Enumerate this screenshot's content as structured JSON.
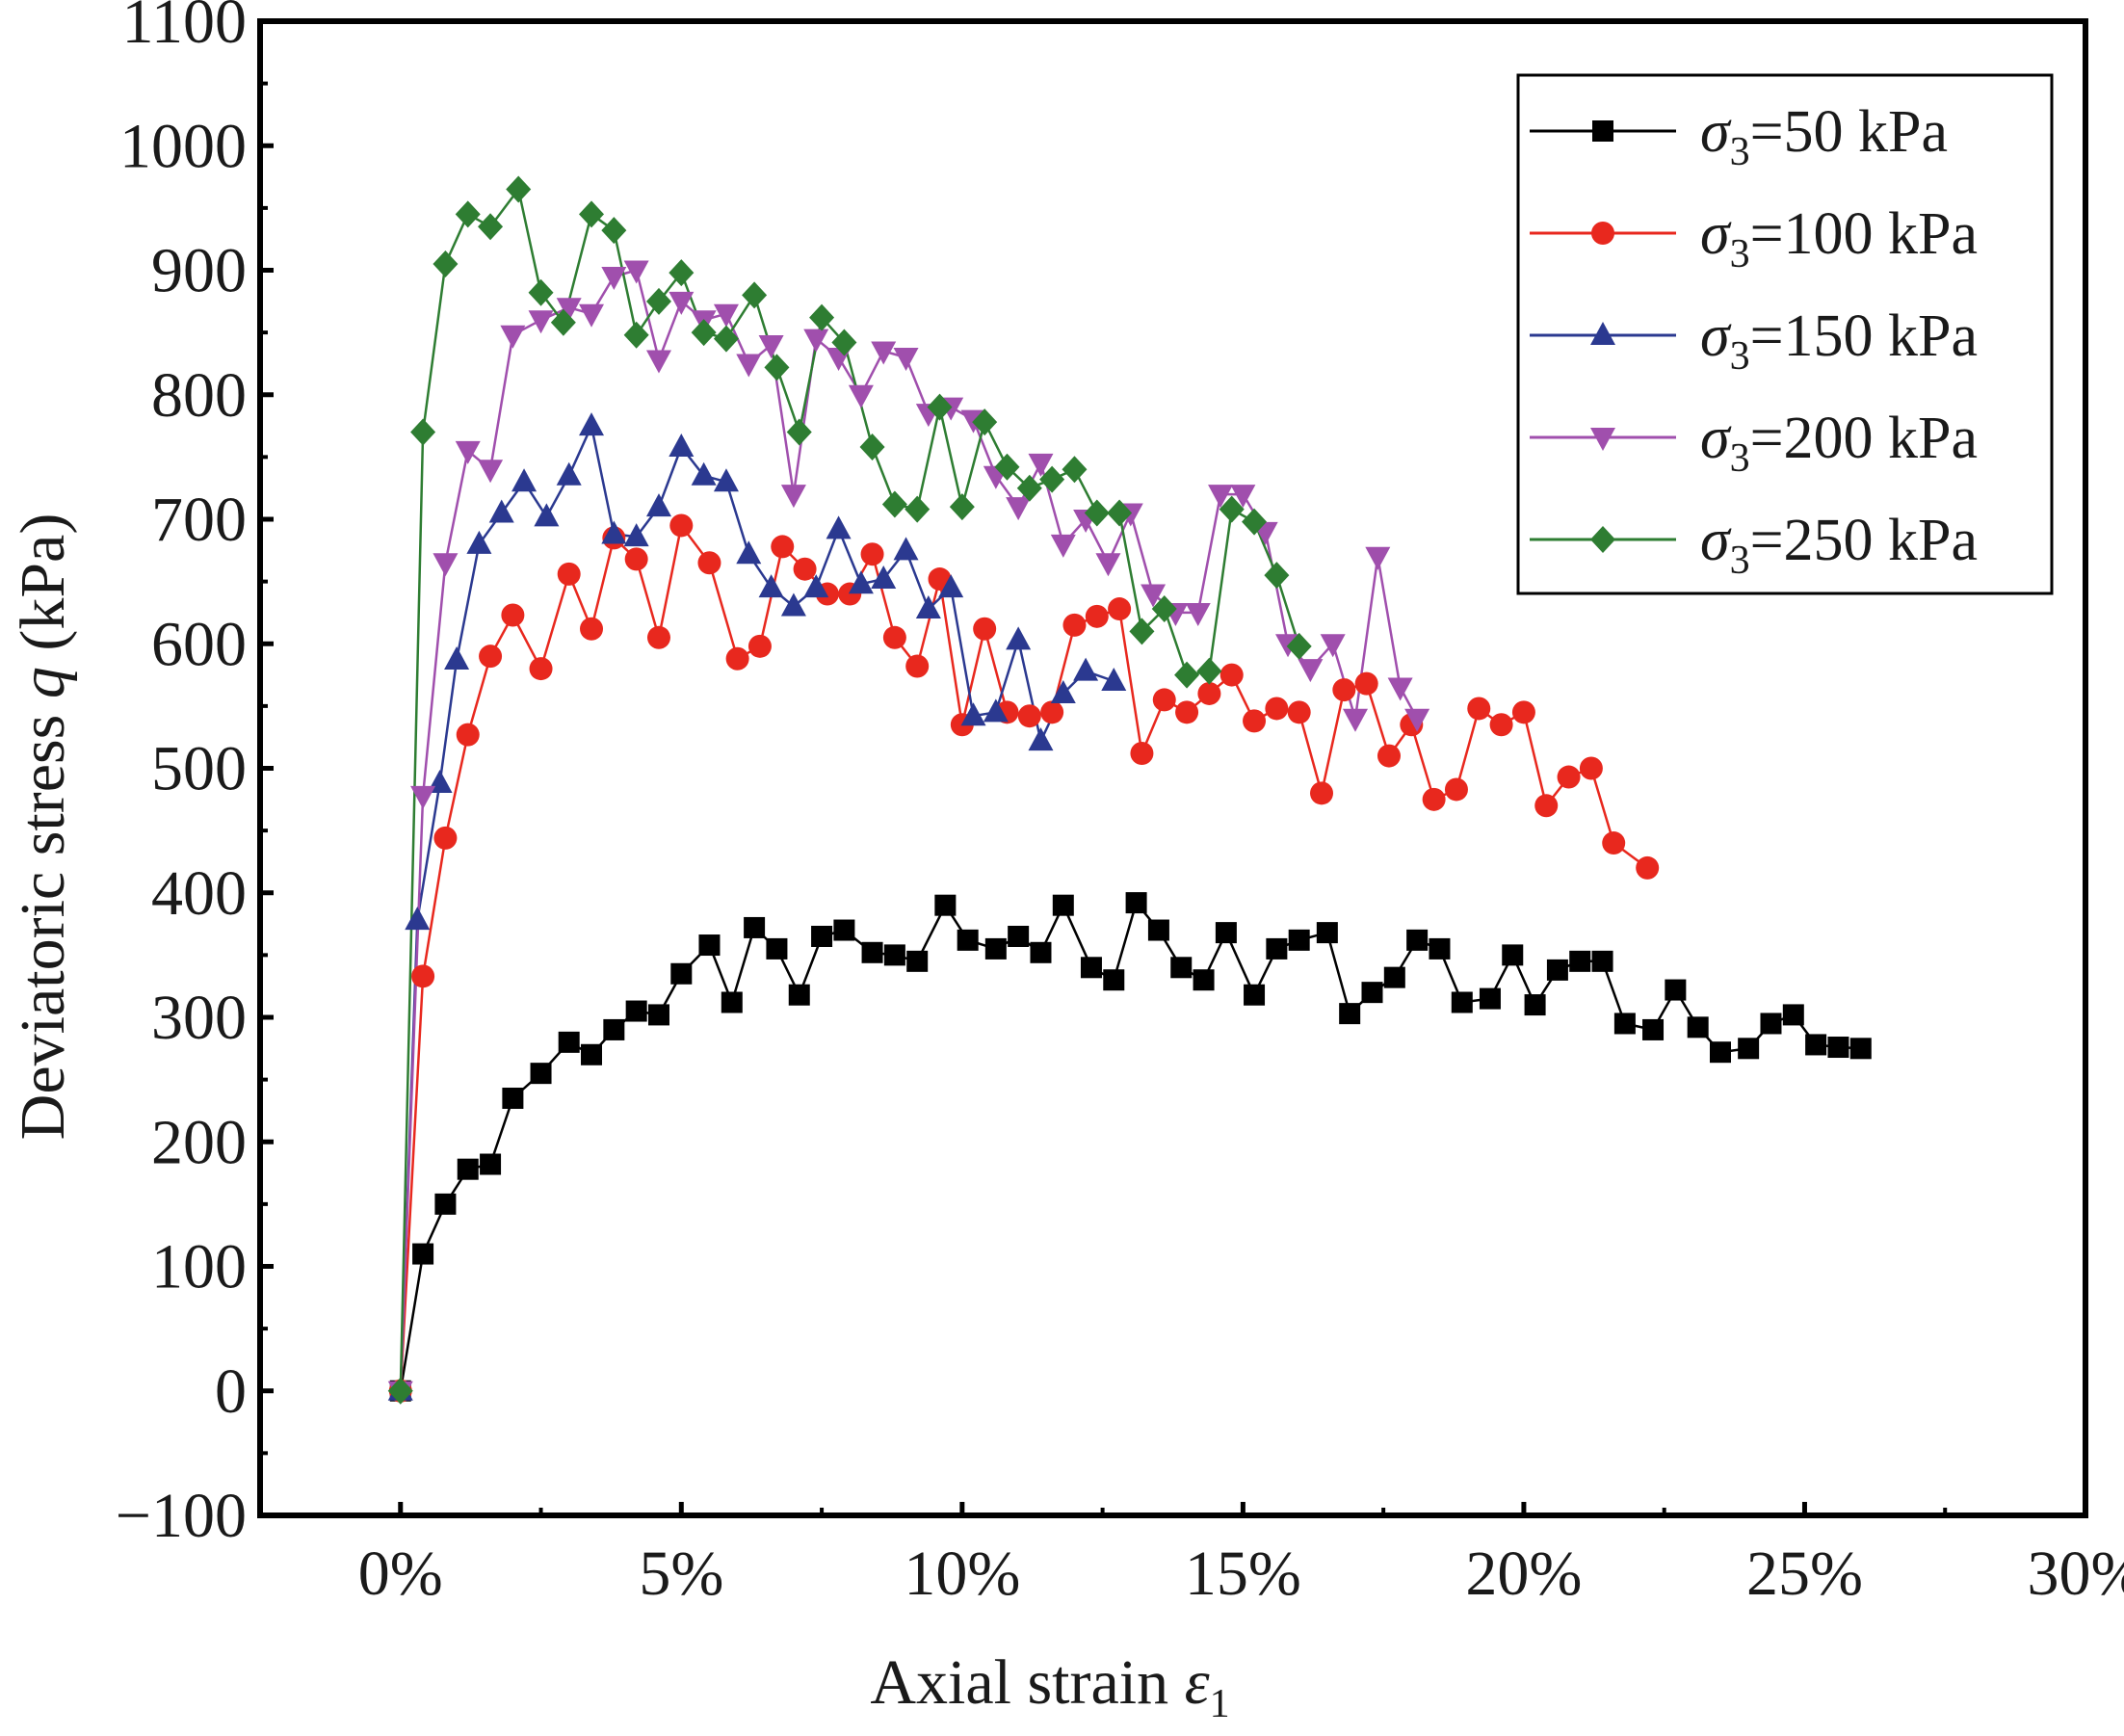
{
  "chart_data": {
    "type": "line",
    "xlabel": "Axial strain",
    "xlabel_symbol": "ε",
    "xlabel_subscript": "1",
    "ylabel": "Deviatoric stress",
    "ylabel_symbol": "q",
    "ylabel_unit": "(kPa)",
    "xlim": [
      -0.025,
      0.3
    ],
    "ylim": [
      -100,
      1100
    ],
    "x_ticks": [
      0,
      0.05,
      0.1,
      0.15,
      0.2,
      0.25,
      0.3
    ],
    "x_tick_labels": [
      "0%",
      "5%",
      "10%",
      "15%",
      "20%",
      "25%",
      "30%"
    ],
    "y_ticks": [
      -100,
      0,
      100,
      200,
      300,
      400,
      500,
      600,
      700,
      800,
      900,
      1000,
      1100
    ],
    "y_tick_labels": [
      "−100",
      "0",
      "100",
      "200",
      "300",
      "400",
      "500",
      "600",
      "700",
      "800",
      "900",
      "1000",
      "1100"
    ],
    "grid": false,
    "legend_position": "top-right",
    "series": [
      {
        "name": "σ3=50 kPa",
        "symbol": "σ",
        "subscript": "3",
        "rest": "=50 kPa",
        "color": "#000000",
        "marker": "square",
        "x": [
          0,
          0.004,
          0.008,
          0.012,
          0.016,
          0.02,
          0.025,
          0.03,
          0.034,
          0.038,
          0.042,
          0.046,
          0.05,
          0.055,
          0.059,
          0.063,
          0.067,
          0.071,
          0.075,
          0.079,
          0.084,
          0.088,
          0.092,
          0.097,
          0.101,
          0.106,
          0.11,
          0.114,
          0.118,
          0.123,
          0.127,
          0.131,
          0.135,
          0.139,
          0.143,
          0.147,
          0.152,
          0.156,
          0.16,
          0.165,
          0.169,
          0.173,
          0.177,
          0.181,
          0.185,
          0.189,
          0.194,
          0.198,
          0.202,
          0.206,
          0.21,
          0.214,
          0.218,
          0.223,
          0.227,
          0.231,
          0.235,
          0.24,
          0.244,
          0.248,
          0.252,
          0.256,
          0.26
        ],
        "y": [
          0,
          110,
          150,
          178,
          182,
          235,
          255,
          280,
          270,
          290,
          305,
          302,
          335,
          358,
          312,
          372,
          355,
          318,
          365,
          370,
          352,
          350,
          345,
          390,
          362,
          355,
          365,
          352,
          390,
          340,
          330,
          392,
          370,
          340,
          330,
          368,
          318,
          355,
          362,
          368,
          303,
          320,
          332,
          362,
          355,
          312,
          315,
          350,
          310,
          338,
          345,
          345,
          295,
          290,
          322,
          292,
          272,
          275,
          295,
          302,
          278,
          276,
          275
        ]
      },
      {
        "name": "σ3=100 kPa",
        "symbol": "σ",
        "subscript": "3",
        "rest": "=100 kPa",
        "color": "#e8281e",
        "marker": "circle",
        "x": [
          0,
          0.004,
          0.008,
          0.012,
          0.016,
          0.02,
          0.025,
          0.03,
          0.034,
          0.038,
          0.042,
          0.046,
          0.05,
          0.055,
          0.06,
          0.064,
          0.068,
          0.072,
          0.076,
          0.08,
          0.084,
          0.088,
          0.092,
          0.096,
          0.1,
          0.104,
          0.108,
          0.112,
          0.116,
          0.12,
          0.124,
          0.128,
          0.132,
          0.136,
          0.14,
          0.144,
          0.148,
          0.152,
          0.156,
          0.16,
          0.164,
          0.168,
          0.172,
          0.176,
          0.18,
          0.184,
          0.188,
          0.192,
          0.196,
          0.2,
          0.204,
          0.208,
          0.212,
          0.216,
          0.222
        ],
        "y": [
          0,
          333,
          444,
          527,
          590,
          623,
          580,
          656,
          612,
          685,
          668,
          605,
          695,
          665,
          588,
          598,
          678,
          660,
          640,
          640,
          672,
          605,
          582,
          652,
          535,
          612,
          545,
          542,
          545,
          615,
          622,
          628,
          512,
          555,
          545,
          560,
          575,
          538,
          548,
          545,
          480,
          563,
          568,
          510,
          535,
          475,
          483,
          548,
          535,
          545,
          470,
          493,
          500,
          440,
          420
        ]
      },
      {
        "name": "σ3=150 kPa",
        "symbol": "σ",
        "subscript": "3",
        "rest": "=150 kPa",
        "color": "#2b3990",
        "marker": "triangle-up",
        "x": [
          0,
          0.003,
          0.007,
          0.01,
          0.014,
          0.018,
          0.022,
          0.026,
          0.03,
          0.034,
          0.038,
          0.042,
          0.046,
          0.05,
          0.054,
          0.058,
          0.062,
          0.066,
          0.07,
          0.074,
          0.078,
          0.082,
          0.086,
          0.09,
          0.094,
          0.098,
          0.102,
          0.106,
          0.11,
          0.114,
          0.118,
          0.122,
          0.127
        ],
        "y": [
          0,
          378,
          488,
          587,
          680,
          705,
          730,
          702,
          735,
          775,
          688,
          686,
          710,
          758,
          735,
          730,
          672,
          645,
          630,
          645,
          692,
          648,
          652,
          675,
          628,
          645,
          542,
          545,
          603,
          522,
          560,
          578,
          570
        ]
      },
      {
        "name": "σ3=200 kPa",
        "symbol": "σ",
        "subscript": "3",
        "rest": "=200 kPa",
        "color": "#a04fad",
        "marker": "triangle-down",
        "x": [
          0,
          0.004,
          0.008,
          0.012,
          0.016,
          0.02,
          0.025,
          0.03,
          0.034,
          0.038,
          0.042,
          0.046,
          0.05,
          0.054,
          0.058,
          0.062,
          0.066,
          0.07,
          0.074,
          0.078,
          0.082,
          0.086,
          0.09,
          0.094,
          0.098,
          0.102,
          0.106,
          0.11,
          0.114,
          0.118,
          0.122,
          0.126,
          0.13,
          0.134,
          0.138,
          0.142,
          0.146,
          0.15,
          0.154,
          0.158,
          0.162,
          0.166,
          0.17,
          0.174,
          0.178,
          0.181
        ],
        "y": [
          0,
          478,
          665,
          755,
          740,
          848,
          860,
          870,
          865,
          895,
          900,
          828,
          875,
          860,
          865,
          825,
          840,
          720,
          845,
          830,
          800,
          835,
          830,
          785,
          790,
          780,
          735,
          710,
          745,
          680,
          700,
          665,
          705,
          640,
          625,
          625,
          720,
          720,
          690,
          600,
          580,
          600,
          540,
          670,
          565,
          540
        ]
      },
      {
        "name": "σ3=250 kPa",
        "symbol": "σ",
        "subscript": "3",
        "rest": "=250 kPa",
        "color": "#2e7d32",
        "marker": "diamond",
        "x": [
          0,
          0.004,
          0.008,
          0.012,
          0.016,
          0.021,
          0.025,
          0.029,
          0.034,
          0.038,
          0.042,
          0.046,
          0.05,
          0.054,
          0.058,
          0.063,
          0.067,
          0.071,
          0.075,
          0.079,
          0.084,
          0.088,
          0.092,
          0.096,
          0.1,
          0.104,
          0.108,
          0.112,
          0.116,
          0.12,
          0.124,
          0.128,
          0.132,
          0.136,
          0.14,
          0.144,
          0.148,
          0.152,
          0.156,
          0.16
        ],
        "y": [
          0,
          770,
          905,
          945,
          935,
          965,
          882,
          858,
          945,
          932,
          848,
          875,
          898,
          850,
          845,
          880,
          822,
          770,
          862,
          842,
          758,
          712,
          708,
          790,
          710,
          778,
          742,
          725,
          732,
          740,
          705,
          705,
          610,
          628,
          575,
          578,
          708,
          698,
          655,
          598
        ]
      }
    ]
  }
}
